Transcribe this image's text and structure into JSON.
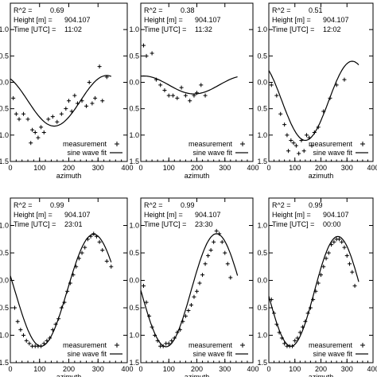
{
  "chart_data": [
    {
      "type": "scatter",
      "stats": [
        {
          "label": "R^2 =",
          "value": "0.69"
        },
        {
          "label": "Height [m] =",
          "value": "904.107"
        },
        {
          "label": "Time [UTC] =",
          "value": "11:02"
        }
      ],
      "xlabel": "azimuth",
      "xlim": [
        0,
        400
      ],
      "xticks": [
        "0",
        "100",
        "200",
        "300",
        "400"
      ],
      "ylim": [
        -1.5,
        1.5
      ],
      "ytick_values": [
        1.0,
        0.5,
        0.0,
        -0.5,
        -1.0,
        -1.5
      ],
      "ytick_labels": [
        "1.0",
        "0.5",
        "0.0",
        "0.5",
        "1.0",
        "1.5"
      ],
      "fit": {
        "mean": -0.35,
        "amp": 0.48,
        "x_peak": 330
      },
      "series": [
        {
          "name": "measurement",
          "marker": "+",
          "x": [
            10,
            20,
            30,
            45,
            60,
            70,
            75,
            85,
            95,
            105,
            115,
            130,
            145,
            160,
            175,
            190,
            200,
            210,
            220,
            230,
            245,
            260,
            270,
            280,
            290,
            305,
            315,
            330
          ],
          "y": [
            -0.3,
            -0.6,
            -0.7,
            -0.6,
            -0.7,
            -1.15,
            -0.9,
            -0.95,
            -1.05,
            -0.85,
            -0.95,
            -0.7,
            -0.65,
            -0.75,
            -0.6,
            -0.5,
            -0.35,
            -0.55,
            -0.25,
            -0.4,
            -0.35,
            -0.45,
            0.0,
            -0.4,
            -0.3,
            0.3,
            -0.35,
            0.1
          ]
        },
        {
          "name": "sine wave fit",
          "marker": "line"
        }
      ],
      "legend_position": "bottom-right"
    },
    {
      "type": "scatter",
      "stats": [
        {
          "label": "R^2 =",
          "value": "0.38"
        },
        {
          "label": "Height [m] =",
          "value": "904.107"
        },
        {
          "label": "Time [UTC] =",
          "value": "11:32"
        }
      ],
      "xlabel": "azimuth",
      "xlim": [
        0,
        400
      ],
      "xticks": [
        "0",
        "100",
        "200",
        "300",
        "400"
      ],
      "ylim": [
        -1.5,
        1.5
      ],
      "ytick_values": [
        1.0,
        0.5,
        0.0,
        -0.5,
        -1.0,
        -1.5
      ],
      "ytick_labels": [
        "1.0",
        "0.5",
        "0.0",
        "0.5",
        "1.0",
        "1.5"
      ],
      "fit": {
        "mean": -0.05,
        "amp": 0.17,
        "x_peak": 10
      },
      "series": [
        {
          "name": "measurement",
          "marker": "+",
          "x": [
            10,
            20,
            40,
            55,
            70,
            85,
            100,
            115,
            130,
            145,
            160,
            175,
            190,
            200,
            215,
            230
          ],
          "y": [
            0.7,
            0.5,
            0.55,
            0.05,
            -0.05,
            -0.15,
            -0.25,
            -0.25,
            -0.3,
            -0.1,
            -0.25,
            -0.35,
            -0.25,
            -0.2,
            -0.05,
            -0.25
          ]
        },
        {
          "name": "sine wave fit",
          "marker": "line"
        }
      ],
      "legend_position": "bottom-right"
    },
    {
      "type": "scatter",
      "stats": [
        {
          "label": "R^2 =",
          "value": "0.51"
        },
        {
          "label": "Height [m] =",
          "value": "904.107"
        },
        {
          "label": "Time [UTC] =",
          "value": "12:02"
        }
      ],
      "xlabel": "azimuth",
      "xlim": [
        0,
        400
      ],
      "xticks": [
        "0",
        "100",
        "200",
        "300",
        "400"
      ],
      "ylim": [
        -1.5,
        1.5
      ],
      "ytick_values": [
        1.0,
        0.5,
        0.0,
        -0.5,
        -1.0,
        -1.5
      ],
      "ytick_labels": [
        "1.0",
        "0.5",
        "0.0",
        "0.5",
        "1.0",
        "1.5"
      ],
      "fit": {
        "mean": -0.35,
        "amp": 0.75,
        "x_peak": 320
      },
      "series": [
        {
          "name": "measurement",
          "marker": "+",
          "x": [
            10,
            30,
            45,
            60,
            70,
            75,
            85,
            95,
            105,
            115,
            125,
            135,
            145,
            155,
            165,
            175,
            190,
            210,
            235,
            260,
            290
          ],
          "y": [
            -0.05,
            -0.25,
            -0.6,
            -0.8,
            -1.0,
            -1.3,
            -1.1,
            -1.15,
            -1.2,
            -1.35,
            -1.1,
            -1.3,
            -1.0,
            -1.05,
            -1.2,
            -0.95,
            -0.85,
            -0.55,
            -0.3,
            -0.05,
            0.05
          ]
        },
        {
          "name": "sine wave fit",
          "marker": "line"
        }
      ],
      "legend_position": "bottom-right"
    },
    {
      "type": "scatter",
      "stats": [
        {
          "label": "R^2 =",
          "value": "0.99"
        },
        {
          "label": "Height [m] =",
          "value": "904.107"
        },
        {
          "label": "Time [UTC] =",
          "value": "23:01"
        }
      ],
      "xlabel": "azimuth",
      "xlim": [
        0,
        400
      ],
      "xticks": [
        "0",
        "100",
        "200",
        "300",
        "400"
      ],
      "ylim": [
        -1.5,
        1.5
      ],
      "ytick_values": [
        1.0,
        0.5,
        0.0,
        -0.5,
        -1.0,
        -1.5
      ],
      "ytick_labels": [
        "1.0",
        "0.5",
        "0.0",
        "0.5",
        "1.0",
        "1.5"
      ],
      "fit": {
        "mean": -0.18,
        "amp": 1.02,
        "x_peak": 285
      },
      "series": [
        {
          "name": "measurement",
          "marker": "+",
          "x": [
            15,
            25,
            35,
            45,
            55,
            65,
            75,
            85,
            95,
            105,
            115,
            125,
            135,
            145,
            155,
            165,
            175,
            185,
            195,
            205,
            215,
            225,
            235,
            245,
            255,
            265,
            275,
            285,
            295,
            305,
            315,
            330,
            345
          ],
          "y": [
            -0.5,
            -0.75,
            -0.9,
            -1.0,
            -1.1,
            -1.15,
            -1.2,
            -1.2,
            -1.2,
            -1.2,
            -1.15,
            -1.1,
            -1.05,
            -0.9,
            -0.8,
            -0.7,
            -0.5,
            -0.4,
            -0.2,
            -0.05,
            0.1,
            0.25,
            0.4,
            0.5,
            0.6,
            0.75,
            0.8,
            0.85,
            0.8,
            0.7,
            0.55,
            0.35,
            0.25
          ]
        },
        {
          "name": "sine wave fit",
          "marker": "line"
        }
      ],
      "legend_position": "bottom-right"
    },
    {
      "type": "scatter",
      "stats": [
        {
          "label": "R^2 =",
          "value": "0.99"
        },
        {
          "label": "Height [m] =",
          "value": "904.107"
        },
        {
          "label": "Time [UTC] =",
          "value": "23:30"
        }
      ],
      "xlabel": "azimuth",
      "xlim": [
        0,
        400
      ],
      "xticks": [
        "0",
        "100",
        "200",
        "300",
        "400"
      ],
      "ylim": [
        -1.5,
        1.5
      ],
      "ytick_values": [
        1.0,
        0.5,
        0.0,
        -0.5,
        -1.0,
        -1.5
      ],
      "ytick_labels": [
        "1.0",
        "0.5",
        "0.0",
        "0.5",
        "1.0",
        "1.5"
      ],
      "fit": {
        "mean": -0.18,
        "amp": 1.03,
        "x_peak": 270
      },
      "series": [
        {
          "name": "measurement",
          "marker": "+",
          "x": [
            10,
            20,
            30,
            40,
            50,
            60,
            70,
            80,
            90,
            100,
            110,
            120,
            130,
            140,
            150,
            160,
            170,
            180,
            190,
            200,
            210,
            220,
            230,
            240,
            250,
            260,
            270,
            280,
            290,
            300,
            310,
            320
          ],
          "y": [
            -0.1,
            -0.4,
            -0.65,
            -0.85,
            -1.0,
            -1.1,
            -1.2,
            -1.2,
            -1.15,
            -1.15,
            -1.1,
            -1.05,
            -0.95,
            -0.9,
            -0.75,
            -0.65,
            -0.55,
            -0.45,
            -0.3,
            -0.2,
            -0.05,
            0.1,
            0.3,
            0.45,
            0.55,
            0.7,
            0.9,
            0.85,
            0.7,
            0.5,
            0.3,
            0.05
          ]
        },
        {
          "name": "sine wave fit",
          "marker": "line"
        }
      ],
      "legend_position": "bottom-right"
    },
    {
      "type": "scatter",
      "stats": [
        {
          "label": "R^2 =",
          "value": "0.99"
        },
        {
          "label": "Height [m] =",
          "value": "904.107"
        },
        {
          "label": "Time [UTC] =",
          "value": "00:00"
        }
      ],
      "xlabel": "azimuth",
      "xlim": [
        0,
        400
      ],
      "xticks": [
        "0",
        "100",
        "200",
        "300",
        "400"
      ],
      "ylim": [
        -1.5,
        1.5
      ],
      "ytick_values": [
        1.0,
        0.5,
        0.0,
        -0.5,
        -1.0,
        -1.5
      ],
      "ytick_labels": [
        "1.0",
        "0.5",
        "0.0",
        "0.5",
        "1.0",
        "1.5"
      ],
      "fit": {
        "mean": -0.2,
        "amp": 1.0,
        "x_peak": 265
      },
      "series": [
        {
          "name": "measurement",
          "marker": "+",
          "x": [
            10,
            20,
            30,
            40,
            50,
            60,
            70,
            80,
            90,
            100,
            110,
            120,
            130,
            140,
            150,
            160,
            170,
            180,
            190,
            200,
            210,
            220,
            230,
            240,
            250,
            260,
            270,
            280,
            290,
            300,
            310,
            320,
            330
          ],
          "y": [
            -0.35,
            -0.6,
            -0.8,
            -0.95,
            -1.05,
            -1.15,
            -1.2,
            -1.2,
            -1.2,
            -1.1,
            -1.05,
            -0.95,
            -0.85,
            -0.75,
            -0.6,
            -0.5,
            -0.35,
            -0.2,
            -0.05,
            0.1,
            0.25,
            0.4,
            0.5,
            0.65,
            0.7,
            0.75,
            0.75,
            0.7,
            0.6,
            0.45,
            0.3,
            0.15,
            -0.1
          ]
        },
        {
          "name": "sine wave fit",
          "marker": "line"
        }
      ],
      "legend_position": "bottom-right"
    }
  ]
}
